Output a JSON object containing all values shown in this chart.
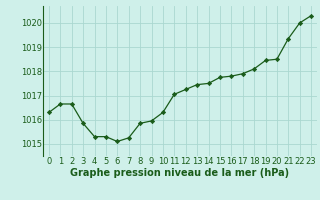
{
  "x": [
    0,
    1,
    2,
    3,
    4,
    5,
    6,
    7,
    8,
    9,
    10,
    11,
    12,
    13,
    14,
    15,
    16,
    17,
    18,
    19,
    20,
    21,
    22,
    23
  ],
  "y": [
    1016.3,
    1016.65,
    1016.65,
    1015.85,
    1015.3,
    1015.3,
    1015.1,
    1015.25,
    1015.85,
    1015.95,
    1016.3,
    1017.05,
    1017.25,
    1017.45,
    1017.5,
    1017.75,
    1017.8,
    1017.9,
    1018.1,
    1018.45,
    1018.5,
    1019.35,
    1020.0,
    1020.3
  ],
  "ylim": [
    1014.5,
    1020.7
  ],
  "xlim": [
    -0.5,
    23.5
  ],
  "yticks": [
    1015,
    1016,
    1017,
    1018,
    1019,
    1020
  ],
  "xticks": [
    0,
    1,
    2,
    3,
    4,
    5,
    6,
    7,
    8,
    9,
    10,
    11,
    12,
    13,
    14,
    15,
    16,
    17,
    18,
    19,
    20,
    21,
    22,
    23
  ],
  "xlabel": "Graphe pression niveau de la mer (hPa)",
  "line_color": "#1a5c1a",
  "marker": "D",
  "marker_size": 2.2,
  "bg_color": "#cff0ea",
  "grid_color": "#aad8d0",
  "tick_color": "#1a5c1a",
  "label_color": "#1a5c1a",
  "xlabel_fontsize": 7.0,
  "tick_fontsize": 6.0,
  "linewidth": 0.9
}
